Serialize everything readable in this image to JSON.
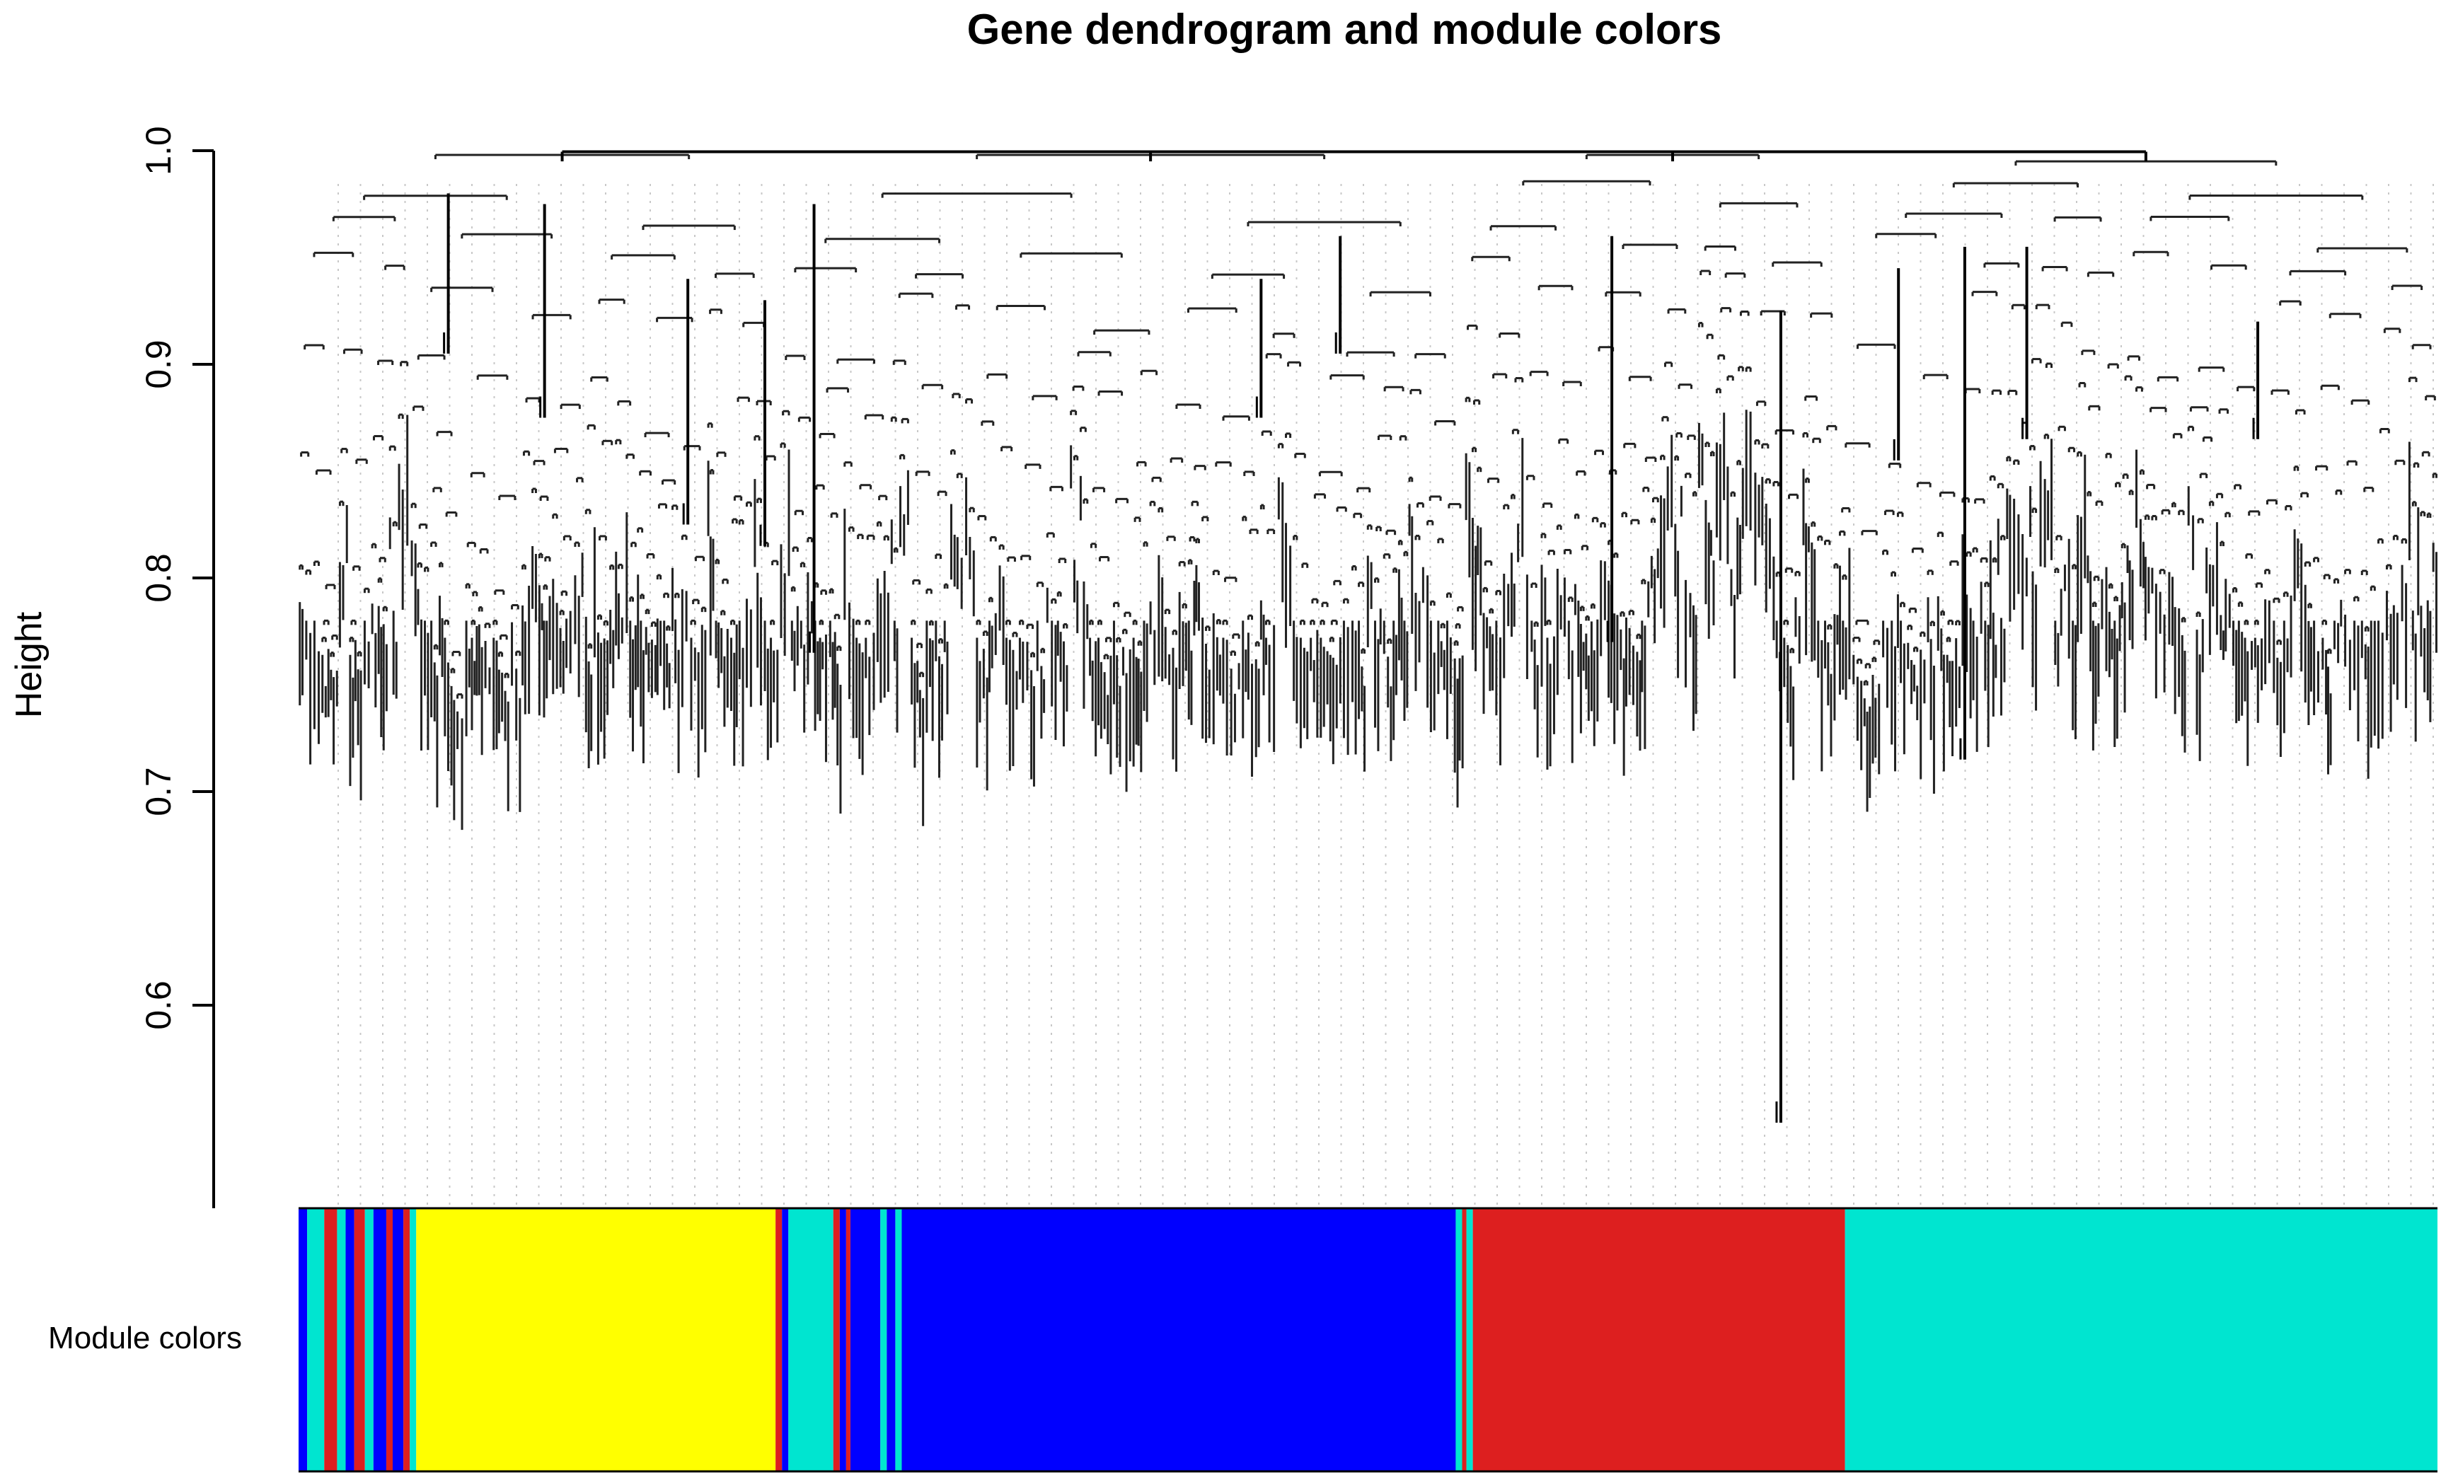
{
  "chart_data": {
    "type": "dendrogram",
    "title": "Gene dendrogram and module colors",
    "ylabel": "Height",
    "xlabel": "",
    "ylim": [
      0.5,
      1.0
    ],
    "y_ticks": [
      0.6,
      0.7,
      0.8,
      0.9,
      1.0
    ],
    "y_tick_labels": [
      "0.6",
      "0.7",
      "0.8",
      "0.9",
      "1.0"
    ],
    "color_bar_label": "Module colors",
    "modules": [
      {
        "name": "turquoise",
        "color": "#00e5d0"
      },
      {
        "name": "blue",
        "color": "#0000ff"
      },
      {
        "name": "red",
        "color": "#dd1f1f"
      },
      {
        "name": "yellow",
        "color": "#ffff00"
      }
    ],
    "module_segments": [
      {
        "module": "blue",
        "from": 0.0,
        "to": 0.004
      },
      {
        "module": "turquoise",
        "from": 0.004,
        "to": 0.012
      },
      {
        "module": "red",
        "from": 0.012,
        "to": 0.018
      },
      {
        "module": "turquoise",
        "from": 0.018,
        "to": 0.022
      },
      {
        "module": "blue",
        "from": 0.022,
        "to": 0.026
      },
      {
        "module": "red",
        "from": 0.026,
        "to": 0.031
      },
      {
        "module": "turquoise",
        "from": 0.031,
        "to": 0.035
      },
      {
        "module": "blue",
        "from": 0.035,
        "to": 0.041
      },
      {
        "module": "red",
        "from": 0.041,
        "to": 0.044
      },
      {
        "module": "blue",
        "from": 0.044,
        "to": 0.049
      },
      {
        "module": "red",
        "from": 0.049,
        "to": 0.052
      },
      {
        "module": "turquoise",
        "from": 0.052,
        "to": 0.055
      },
      {
        "module": "yellow",
        "from": 0.055,
        "to": 0.223
      },
      {
        "module": "red",
        "from": 0.223,
        "to": 0.226
      },
      {
        "module": "blue",
        "from": 0.226,
        "to": 0.229
      },
      {
        "module": "turquoise",
        "from": 0.229,
        "to": 0.25
      },
      {
        "module": "red",
        "from": 0.25,
        "to": 0.253
      },
      {
        "module": "blue",
        "from": 0.253,
        "to": 0.256
      },
      {
        "module": "red",
        "from": 0.256,
        "to": 0.258
      },
      {
        "module": "blue",
        "from": 0.258,
        "to": 0.272
      },
      {
        "module": "turquoise",
        "from": 0.272,
        "to": 0.275
      },
      {
        "module": "blue",
        "from": 0.275,
        "to": 0.279
      },
      {
        "module": "turquoise",
        "from": 0.279,
        "to": 0.282
      },
      {
        "module": "blue",
        "from": 0.282,
        "to": 0.541
      },
      {
        "module": "turquoise",
        "from": 0.541,
        "to": 0.544
      },
      {
        "module": "red",
        "from": 0.544,
        "to": 0.546
      },
      {
        "module": "turquoise",
        "from": 0.546,
        "to": 0.549
      },
      {
        "module": "red",
        "from": 0.549,
        "to": 0.723
      },
      {
        "module": "turquoise",
        "from": 0.723,
        "to": 1.0
      }
    ],
    "long_branches": [
      {
        "position": 0.07,
        "top": 0.98,
        "bottom": 0.905
      },
      {
        "position": 0.115,
        "top": 0.975,
        "bottom": 0.875
      },
      {
        "position": 0.182,
        "top": 0.94,
        "bottom": 0.825
      },
      {
        "position": 0.218,
        "top": 0.93,
        "bottom": 0.815
      },
      {
        "position": 0.241,
        "top": 0.975,
        "bottom": 0.765
      },
      {
        "position": 0.45,
        "top": 0.94,
        "bottom": 0.875
      },
      {
        "position": 0.487,
        "top": 0.96,
        "bottom": 0.905
      },
      {
        "position": 0.614,
        "top": 0.96,
        "bottom": 0.77
      },
      {
        "position": 0.693,
        "top": 0.925,
        "bottom": 0.545
      },
      {
        "position": 0.779,
        "top": 0.955,
        "bottom": 0.715
      },
      {
        "position": 0.748,
        "top": 0.945,
        "bottom": 0.855
      },
      {
        "position": 0.808,
        "top": 0.955,
        "bottom": 0.865
      },
      {
        "position": 0.916,
        "top": 0.92,
        "bottom": 0.865
      }
    ]
  }
}
